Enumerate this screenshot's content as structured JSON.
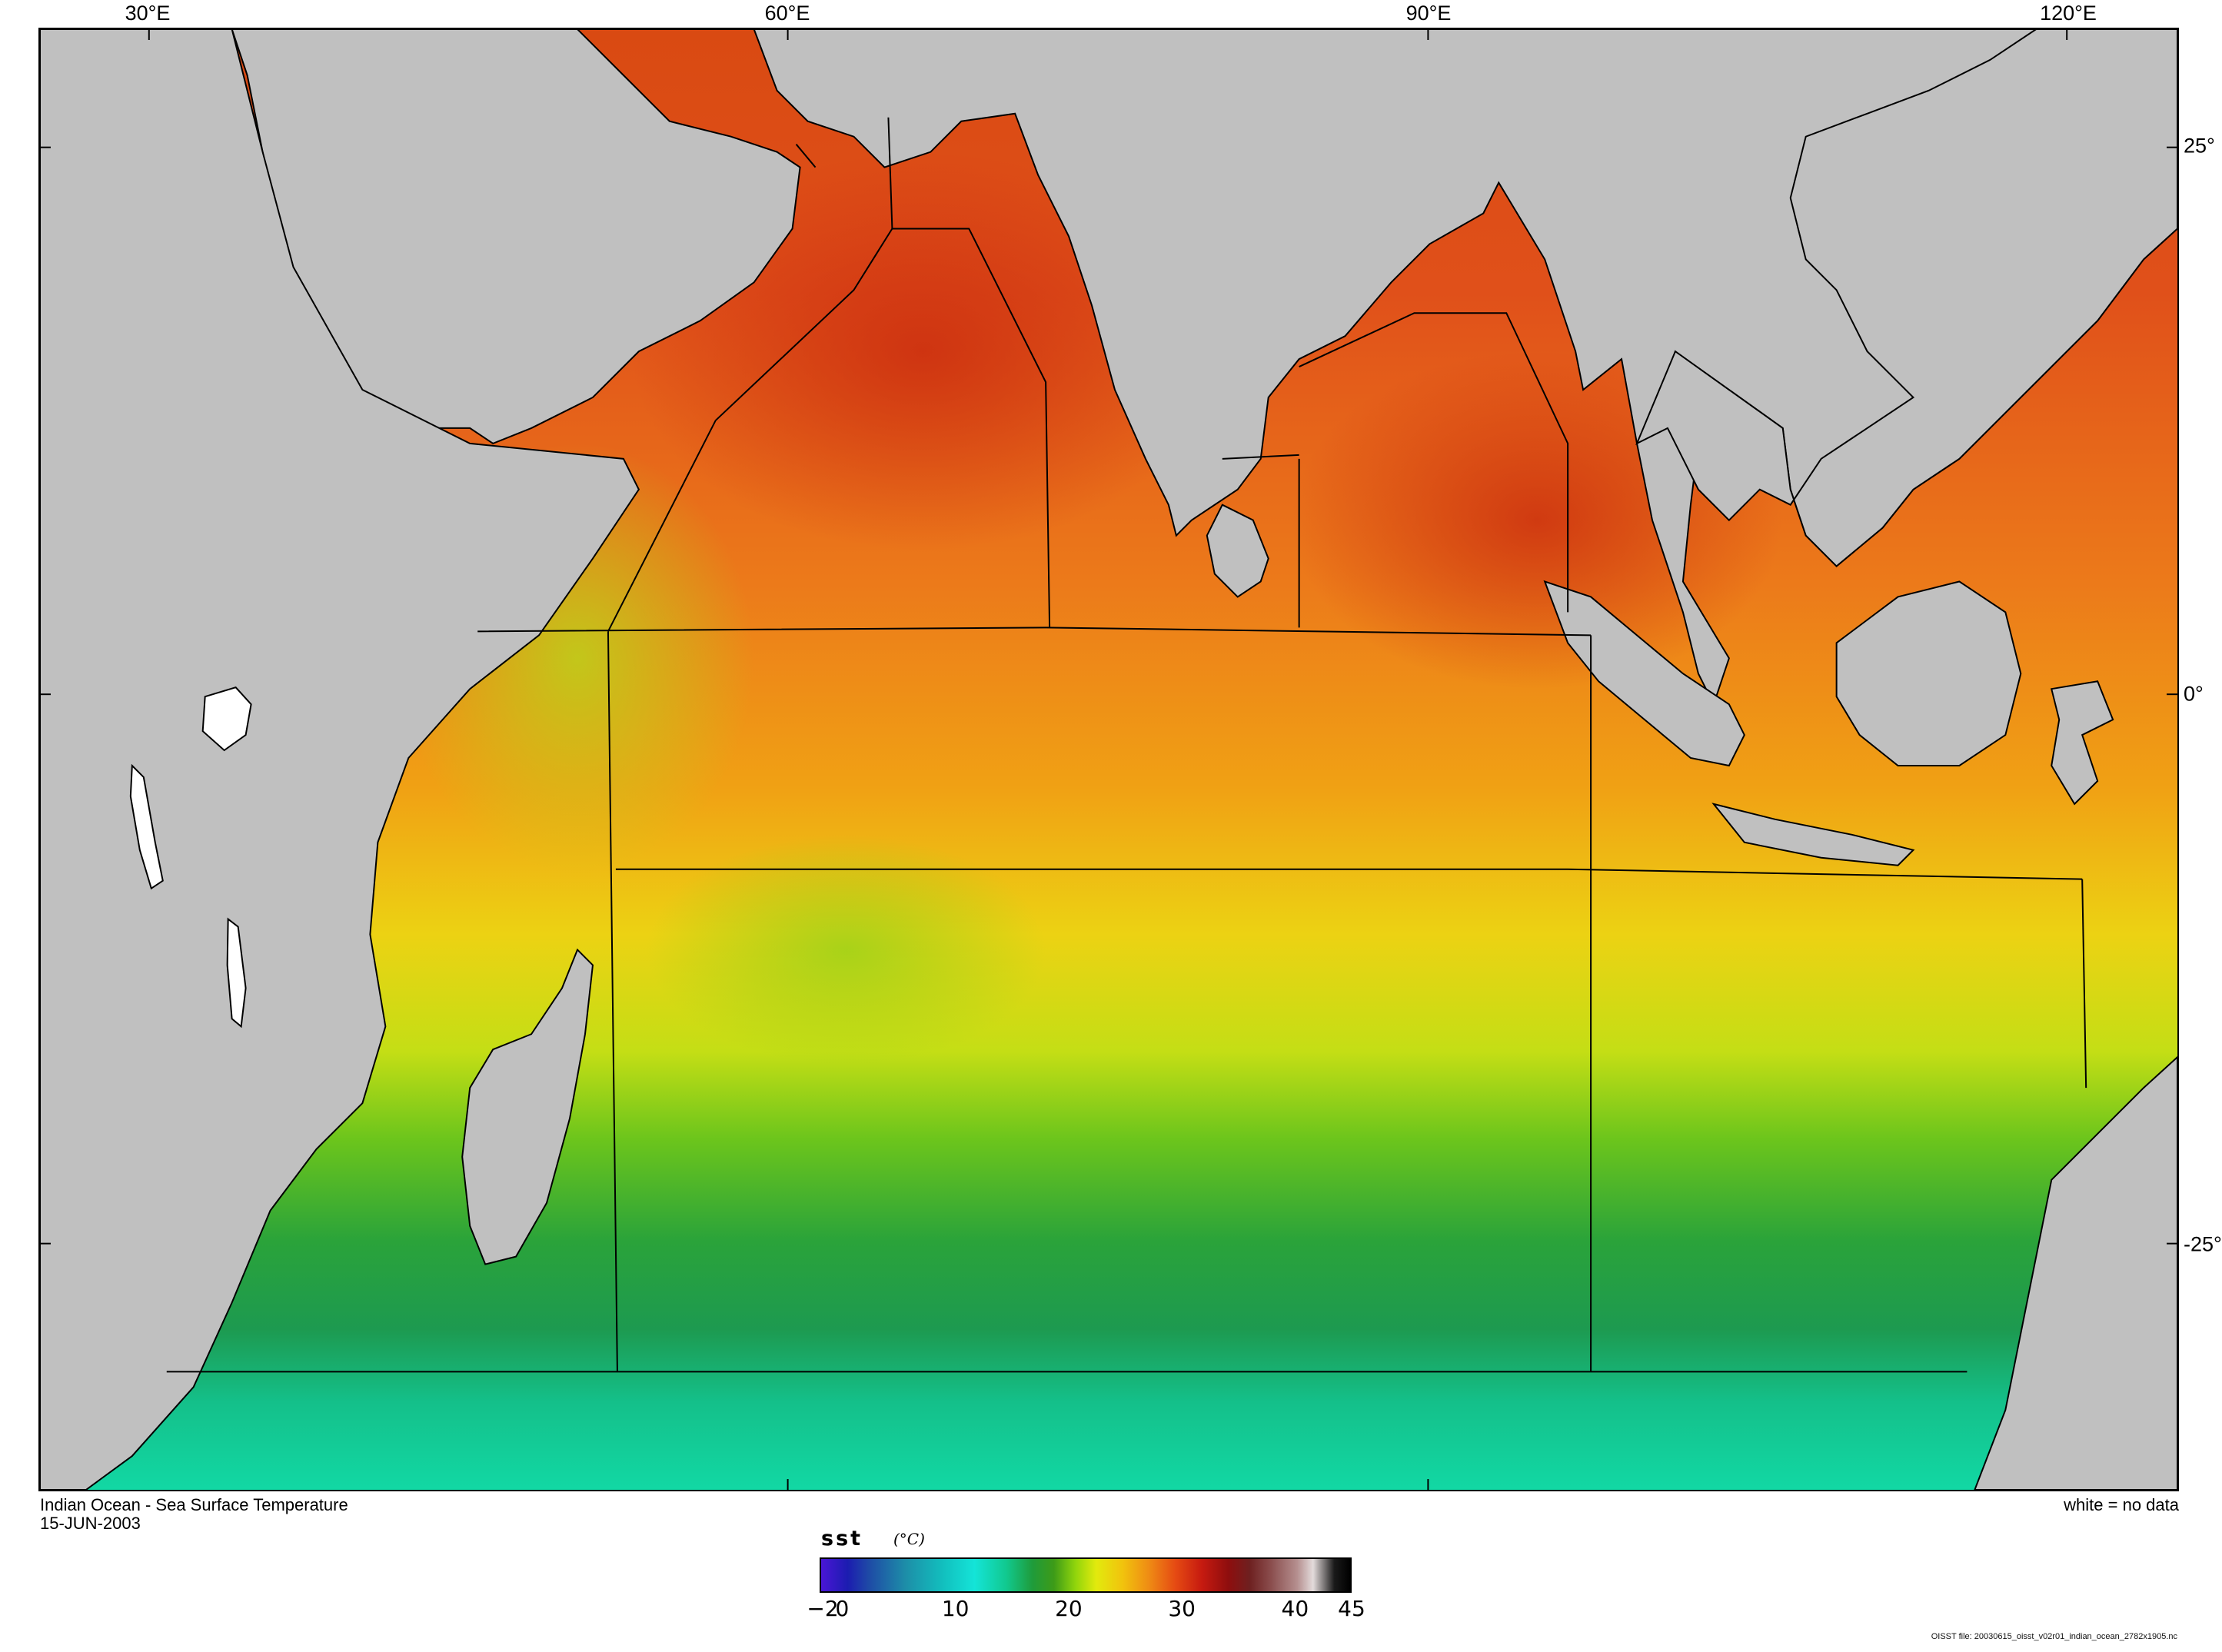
{
  "map": {
    "title": "Indian Ocean - Sea Surface Temperature",
    "date": "15-JUN-2003",
    "no_data_note": "white = no data",
    "file_note": "OISST file: 20030615_oisst_v02r01_indian_ocean_2782x1905.nc",
    "longitude_labels": [
      "30°E",
      "60°E",
      "90°E",
      "120°E"
    ],
    "latitude_labels": [
      "25°",
      "0°",
      "-25°"
    ],
    "colors": {
      "land": "#c0c0c0",
      "no_data": "#ffffff",
      "coast_line": "#000000"
    }
  },
  "legend": {
    "variable": "sst",
    "unit": "(°C)",
    "ticks": [
      "−2",
      "0",
      "10",
      "20",
      "30",
      "40",
      "45"
    ],
    "range": [
      -2,
      45
    ]
  }
}
